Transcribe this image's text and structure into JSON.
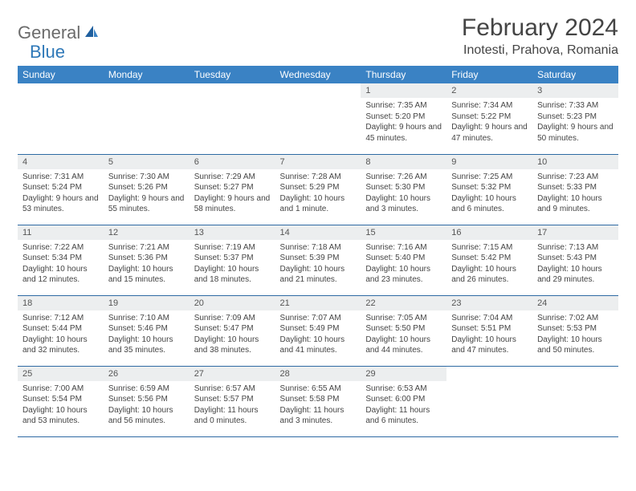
{
  "brand": {
    "part1": "General",
    "part2": "Blue"
  },
  "title": "February 2024",
  "location": "Inotesti, Prahova, Romania",
  "colors": {
    "header_bg": "#3a82c4",
    "header_text": "#ffffff",
    "daynum_bg": "#eceeef",
    "border": "#2e6aa3",
    "brand_gray": "#6b6b6b",
    "brand_blue": "#2e78b8"
  },
  "weekdays": [
    "Sunday",
    "Monday",
    "Tuesday",
    "Wednesday",
    "Thursday",
    "Friday",
    "Saturday"
  ],
  "weeks": [
    [
      {
        "n": "",
        "sr": "",
        "ss": "",
        "dl": ""
      },
      {
        "n": "",
        "sr": "",
        "ss": "",
        "dl": ""
      },
      {
        "n": "",
        "sr": "",
        "ss": "",
        "dl": ""
      },
      {
        "n": "",
        "sr": "",
        "ss": "",
        "dl": ""
      },
      {
        "n": "1",
        "sr": "Sunrise: 7:35 AM",
        "ss": "Sunset: 5:20 PM",
        "dl": "Daylight: 9 hours and 45 minutes."
      },
      {
        "n": "2",
        "sr": "Sunrise: 7:34 AM",
        "ss": "Sunset: 5:22 PM",
        "dl": "Daylight: 9 hours and 47 minutes."
      },
      {
        "n": "3",
        "sr": "Sunrise: 7:33 AM",
        "ss": "Sunset: 5:23 PM",
        "dl": "Daylight: 9 hours and 50 minutes."
      }
    ],
    [
      {
        "n": "4",
        "sr": "Sunrise: 7:31 AM",
        "ss": "Sunset: 5:24 PM",
        "dl": "Daylight: 9 hours and 53 minutes."
      },
      {
        "n": "5",
        "sr": "Sunrise: 7:30 AM",
        "ss": "Sunset: 5:26 PM",
        "dl": "Daylight: 9 hours and 55 minutes."
      },
      {
        "n": "6",
        "sr": "Sunrise: 7:29 AM",
        "ss": "Sunset: 5:27 PM",
        "dl": "Daylight: 9 hours and 58 minutes."
      },
      {
        "n": "7",
        "sr": "Sunrise: 7:28 AM",
        "ss": "Sunset: 5:29 PM",
        "dl": "Daylight: 10 hours and 1 minute."
      },
      {
        "n": "8",
        "sr": "Sunrise: 7:26 AM",
        "ss": "Sunset: 5:30 PM",
        "dl": "Daylight: 10 hours and 3 minutes."
      },
      {
        "n": "9",
        "sr": "Sunrise: 7:25 AM",
        "ss": "Sunset: 5:32 PM",
        "dl": "Daylight: 10 hours and 6 minutes."
      },
      {
        "n": "10",
        "sr": "Sunrise: 7:23 AM",
        "ss": "Sunset: 5:33 PM",
        "dl": "Daylight: 10 hours and 9 minutes."
      }
    ],
    [
      {
        "n": "11",
        "sr": "Sunrise: 7:22 AM",
        "ss": "Sunset: 5:34 PM",
        "dl": "Daylight: 10 hours and 12 minutes."
      },
      {
        "n": "12",
        "sr": "Sunrise: 7:21 AM",
        "ss": "Sunset: 5:36 PM",
        "dl": "Daylight: 10 hours and 15 minutes."
      },
      {
        "n": "13",
        "sr": "Sunrise: 7:19 AM",
        "ss": "Sunset: 5:37 PM",
        "dl": "Daylight: 10 hours and 18 minutes."
      },
      {
        "n": "14",
        "sr": "Sunrise: 7:18 AM",
        "ss": "Sunset: 5:39 PM",
        "dl": "Daylight: 10 hours and 21 minutes."
      },
      {
        "n": "15",
        "sr": "Sunrise: 7:16 AM",
        "ss": "Sunset: 5:40 PM",
        "dl": "Daylight: 10 hours and 23 minutes."
      },
      {
        "n": "16",
        "sr": "Sunrise: 7:15 AM",
        "ss": "Sunset: 5:42 PM",
        "dl": "Daylight: 10 hours and 26 minutes."
      },
      {
        "n": "17",
        "sr": "Sunrise: 7:13 AM",
        "ss": "Sunset: 5:43 PM",
        "dl": "Daylight: 10 hours and 29 minutes."
      }
    ],
    [
      {
        "n": "18",
        "sr": "Sunrise: 7:12 AM",
        "ss": "Sunset: 5:44 PM",
        "dl": "Daylight: 10 hours and 32 minutes."
      },
      {
        "n": "19",
        "sr": "Sunrise: 7:10 AM",
        "ss": "Sunset: 5:46 PM",
        "dl": "Daylight: 10 hours and 35 minutes."
      },
      {
        "n": "20",
        "sr": "Sunrise: 7:09 AM",
        "ss": "Sunset: 5:47 PM",
        "dl": "Daylight: 10 hours and 38 minutes."
      },
      {
        "n": "21",
        "sr": "Sunrise: 7:07 AM",
        "ss": "Sunset: 5:49 PM",
        "dl": "Daylight: 10 hours and 41 minutes."
      },
      {
        "n": "22",
        "sr": "Sunrise: 7:05 AM",
        "ss": "Sunset: 5:50 PM",
        "dl": "Daylight: 10 hours and 44 minutes."
      },
      {
        "n": "23",
        "sr": "Sunrise: 7:04 AM",
        "ss": "Sunset: 5:51 PM",
        "dl": "Daylight: 10 hours and 47 minutes."
      },
      {
        "n": "24",
        "sr": "Sunrise: 7:02 AM",
        "ss": "Sunset: 5:53 PM",
        "dl": "Daylight: 10 hours and 50 minutes."
      }
    ],
    [
      {
        "n": "25",
        "sr": "Sunrise: 7:00 AM",
        "ss": "Sunset: 5:54 PM",
        "dl": "Daylight: 10 hours and 53 minutes."
      },
      {
        "n": "26",
        "sr": "Sunrise: 6:59 AM",
        "ss": "Sunset: 5:56 PM",
        "dl": "Daylight: 10 hours and 56 minutes."
      },
      {
        "n": "27",
        "sr": "Sunrise: 6:57 AM",
        "ss": "Sunset: 5:57 PM",
        "dl": "Daylight: 11 hours and 0 minutes."
      },
      {
        "n": "28",
        "sr": "Sunrise: 6:55 AM",
        "ss": "Sunset: 5:58 PM",
        "dl": "Daylight: 11 hours and 3 minutes."
      },
      {
        "n": "29",
        "sr": "Sunrise: 6:53 AM",
        "ss": "Sunset: 6:00 PM",
        "dl": "Daylight: 11 hours and 6 minutes."
      },
      {
        "n": "",
        "sr": "",
        "ss": "",
        "dl": ""
      },
      {
        "n": "",
        "sr": "",
        "ss": "",
        "dl": ""
      }
    ]
  ]
}
